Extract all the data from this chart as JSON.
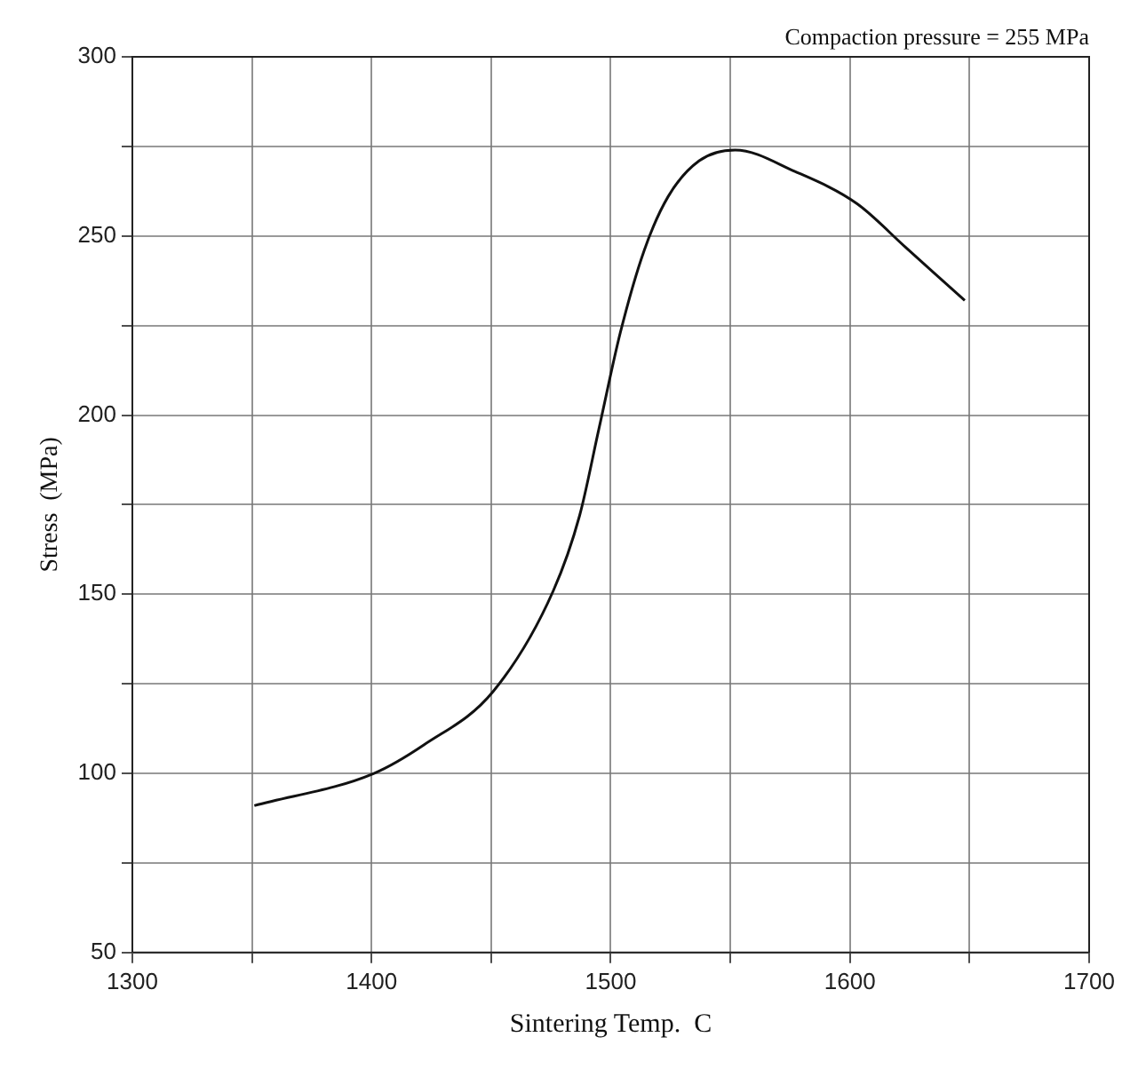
{
  "chart_data": {
    "type": "line",
    "xlabel": "Sintering Temp.  C",
    "ylabel": "Stress  (MPa)",
    "annotations": [
      "Compaction pressure = 255 MPa"
    ],
    "x": [
      1351,
      1401,
      1422,
      1451,
      1476,
      1487,
      1495,
      1504,
      1514,
      1524,
      1537,
      1552,
      1577,
      1603,
      1623,
      1648
    ],
    "series": [
      {
        "color": "#111111",
        "values": [
          91,
          100,
          108,
          123,
          151,
          172,
          196,
          223,
          246,
          261,
          271,
          274,
          268,
          259,
          247,
          232
        ]
      }
    ],
    "xlim": [
      1300,
      1700
    ],
    "xticks": [
      1300,
      {
        "value": 1350,
        "label": null
      },
      1400,
      {
        "value": 1450,
        "label": null
      },
      1500,
      {
        "value": 1550,
        "label": null
      },
      1600,
      {
        "value": 1650,
        "label": null
      },
      1700
    ],
    "ylim": [
      50,
      300
    ],
    "yticks": [
      50,
      {
        "value": 75,
        "label": null
      },
      100,
      {
        "value": 125,
        "label": null
      },
      150,
      {
        "value": 175,
        "label": null
      },
      200,
      {
        "value": 225,
        "label": null
      },
      250,
      {
        "value": 275,
        "label": null
      },
      300
    ],
    "grid": true,
    "legend": false,
    "marker": "none",
    "line_style": "solid"
  }
}
